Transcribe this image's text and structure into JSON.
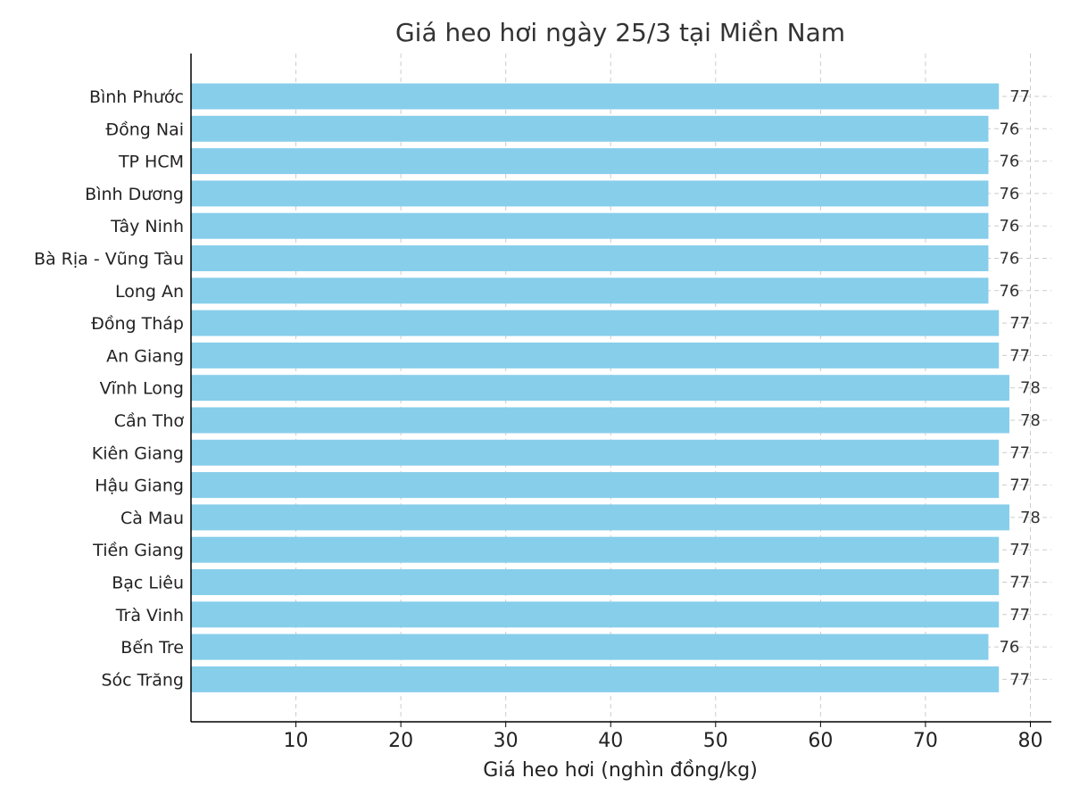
{
  "chart_data": {
    "type": "bar",
    "orientation": "horizontal",
    "title": "Giá heo hơi ngày 25/3 tại Miền Nam",
    "xlabel": "Giá heo hơi (nghìn đồng/kg)",
    "ylabel": "",
    "categories": [
      "Bình Phước",
      "Đồng Nai",
      "TP HCM",
      "Bình Dương",
      "Tây Ninh",
      "Bà Rịa - Vũng Tàu",
      "Long An",
      "Đồng Tháp",
      "An Giang",
      "Vĩnh Long",
      "Cần Thơ",
      "Kiên Giang",
      "Hậu Giang",
      "Cà Mau",
      "Tiền Giang",
      "Bạc Liêu",
      "Trà Vinh",
      "Bến Tre",
      "Sóc Trăng"
    ],
    "values": [
      77,
      76,
      76,
      76,
      76,
      76,
      76,
      77,
      77,
      78,
      78,
      77,
      77,
      78,
      77,
      77,
      77,
      76,
      77
    ],
    "xlim": [
      0,
      82
    ],
    "xticks": [
      10,
      20,
      30,
      40,
      50,
      60,
      70,
      80
    ],
    "grid": true,
    "data_labels": true,
    "colors": {
      "bar": "#87CEEB",
      "grid": "#cccccc",
      "axis": "#000000",
      "text": "#222222"
    }
  }
}
